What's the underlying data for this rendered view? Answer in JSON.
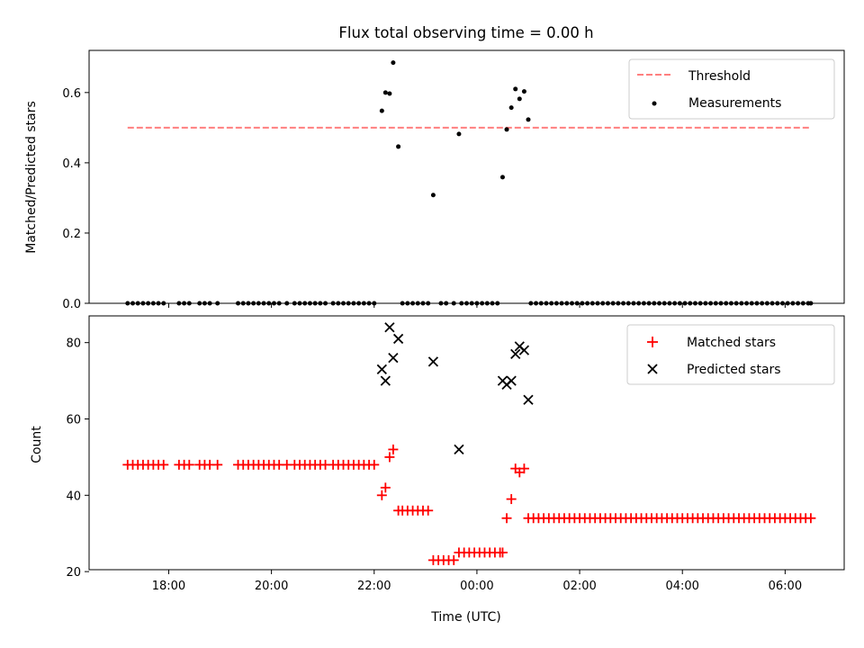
{
  "title": "Flux total observing time = 0.00 h",
  "colors": {
    "threshold": "#ff7f7f",
    "measurement": "#000000",
    "matched": "#ff0000",
    "predicted": "#000000"
  },
  "chart_data": [
    {
      "type": "scatter",
      "ylabel": "Matched/Predicted stars",
      "xlabel": "",
      "x_unit": "hours (UTC, continuing past midnight)",
      "xlim": [
        16.45,
        31.15
      ],
      "ylim": [
        0.0,
        0.72
      ],
      "yticks": [
        0.0,
        0.2,
        0.4,
        0.6
      ],
      "ytick_labels": [
        "0.0",
        "0.2",
        "0.4",
        "0.6"
      ],
      "legend": {
        "position": "top-right",
        "entries": [
          "Threshold",
          "Measurements"
        ]
      },
      "threshold": {
        "name": "Threshold",
        "value": 0.5,
        "x_range": [
          17.2,
          30.5
        ]
      },
      "series": [
        {
          "name": "Measurements",
          "points": [
            [
              17.2,
              0
            ],
            [
              17.3,
              0
            ],
            [
              17.4,
              0
            ],
            [
              17.5,
              0
            ],
            [
              17.6,
              0
            ],
            [
              17.7,
              0
            ],
            [
              17.8,
              0
            ],
            [
              17.9,
              0
            ],
            [
              18.2,
              0
            ],
            [
              18.3,
              0
            ],
            [
              18.4,
              0
            ],
            [
              18.6,
              0
            ],
            [
              18.7,
              0
            ],
            [
              18.8,
              0
            ],
            [
              18.95,
              0
            ],
            [
              19.35,
              0
            ],
            [
              19.45,
              0
            ],
            [
              19.55,
              0
            ],
            [
              19.65,
              0
            ],
            [
              19.75,
              0
            ],
            [
              19.85,
              0
            ],
            [
              19.95,
              0
            ],
            [
              20.05,
              0
            ],
            [
              20.15,
              0
            ],
            [
              20.3,
              0
            ],
            [
              20.45,
              0
            ],
            [
              20.55,
              0
            ],
            [
              20.65,
              0
            ],
            [
              20.75,
              0
            ],
            [
              20.85,
              0
            ],
            [
              20.95,
              0
            ],
            [
              21.05,
              0
            ],
            [
              21.2,
              0
            ],
            [
              21.3,
              0
            ],
            [
              21.4,
              0
            ],
            [
              21.5,
              0
            ],
            [
              21.6,
              0
            ],
            [
              21.7,
              0
            ],
            [
              21.8,
              0
            ],
            [
              21.9,
              0
            ],
            [
              22.0,
              0
            ],
            [
              22.15,
              0.548
            ],
            [
              22.22,
              0.6
            ],
            [
              22.3,
              0.597
            ],
            [
              22.37,
              0.685
            ],
            [
              22.47,
              0.446
            ],
            [
              22.55,
              0
            ],
            [
              22.65,
              0
            ],
            [
              22.75,
              0
            ],
            [
              22.85,
              0
            ],
            [
              22.95,
              0
            ],
            [
              23.05,
              0
            ],
            [
              23.15,
              0.308
            ],
            [
              23.65,
              0.482
            ],
            [
              23.3,
              0
            ],
            [
              23.4,
              0
            ],
            [
              23.55,
              0
            ],
            [
              23.7,
              0
            ],
            [
              23.8,
              0
            ],
            [
              23.9,
              0
            ],
            [
              24.0,
              0
            ],
            [
              24.1,
              0
            ],
            [
              24.2,
              0
            ],
            [
              24.3,
              0
            ],
            [
              24.4,
              0
            ],
            [
              24.5,
              0.359
            ],
            [
              24.58,
              0.495
            ],
            [
              24.67,
              0.557
            ],
            [
              24.75,
              0.61
            ],
            [
              24.83,
              0.582
            ],
            [
              24.92,
              0.603
            ],
            [
              25.0,
              0.523
            ],
            [
              25.05,
              0
            ],
            [
              25.15,
              0
            ],
            [
              25.25,
              0
            ],
            [
              25.35,
              0
            ],
            [
              25.45,
              0
            ],
            [
              25.55,
              0
            ],
            [
              25.65,
              0
            ],
            [
              25.75,
              0
            ],
            [
              25.85,
              0
            ],
            [
              25.95,
              0
            ],
            [
              26.05,
              0
            ],
            [
              26.15,
              0
            ],
            [
              26.25,
              0
            ],
            [
              26.35,
              0
            ],
            [
              26.45,
              0
            ],
            [
              26.55,
              0
            ],
            [
              26.65,
              0
            ],
            [
              26.75,
              0
            ],
            [
              26.85,
              0
            ],
            [
              26.95,
              0
            ],
            [
              27.05,
              0
            ],
            [
              27.15,
              0
            ],
            [
              27.25,
              0
            ],
            [
              27.35,
              0
            ],
            [
              27.45,
              0
            ],
            [
              27.55,
              0
            ],
            [
              27.65,
              0
            ],
            [
              27.75,
              0
            ],
            [
              27.85,
              0
            ],
            [
              27.95,
              0
            ],
            [
              28.05,
              0
            ],
            [
              28.15,
              0
            ],
            [
              28.25,
              0
            ],
            [
              28.35,
              0
            ],
            [
              28.45,
              0
            ],
            [
              28.55,
              0
            ],
            [
              28.65,
              0
            ],
            [
              28.75,
              0
            ],
            [
              28.85,
              0
            ],
            [
              28.95,
              0
            ],
            [
              29.05,
              0
            ],
            [
              29.15,
              0
            ],
            [
              29.25,
              0
            ],
            [
              29.35,
              0
            ],
            [
              29.45,
              0
            ],
            [
              29.55,
              0
            ],
            [
              29.65,
              0
            ],
            [
              29.75,
              0
            ],
            [
              29.85,
              0
            ],
            [
              29.95,
              0
            ],
            [
              30.05,
              0
            ],
            [
              30.15,
              0
            ],
            [
              30.25,
              0
            ],
            [
              30.35,
              0
            ],
            [
              30.45,
              0
            ],
            [
              30.5,
              0
            ]
          ]
        }
      ]
    },
    {
      "type": "scatter",
      "ylabel": "Count",
      "xlabel": "Time (UTC)",
      "x_unit": "hours (UTC, continuing past midnight)",
      "xlim": [
        16.45,
        31.15
      ],
      "ylim": [
        20.5,
        87
      ],
      "yticks": [
        20,
        40,
        60,
        80
      ],
      "ytick_labels": [
        "20",
        "40",
        "60",
        "80"
      ],
      "xticks": [
        18,
        20,
        22,
        24,
        26,
        28,
        30
      ],
      "xtick_labels": [
        "18:00",
        "20:00",
        "22:00",
        "00:00",
        "02:00",
        "04:00",
        "06:00"
      ],
      "legend": {
        "position": "top-right",
        "entries": [
          "Matched stars",
          "Predicted stars"
        ]
      },
      "series": [
        {
          "name": "Matched stars",
          "points": [
            [
              17.2,
              48
            ],
            [
              17.3,
              48
            ],
            [
              17.4,
              48
            ],
            [
              17.5,
              48
            ],
            [
              17.6,
              48
            ],
            [
              17.7,
              48
            ],
            [
              17.8,
              48
            ],
            [
              17.9,
              48
            ],
            [
              18.2,
              48
            ],
            [
              18.3,
              48
            ],
            [
              18.4,
              48
            ],
            [
              18.6,
              48
            ],
            [
              18.7,
              48
            ],
            [
              18.8,
              48
            ],
            [
              18.95,
              48
            ],
            [
              19.35,
              48
            ],
            [
              19.45,
              48
            ],
            [
              19.55,
              48
            ],
            [
              19.65,
              48
            ],
            [
              19.75,
              48
            ],
            [
              19.85,
              48
            ],
            [
              19.95,
              48
            ],
            [
              20.05,
              48
            ],
            [
              20.15,
              48
            ],
            [
              20.3,
              48
            ],
            [
              20.45,
              48
            ],
            [
              20.55,
              48
            ],
            [
              20.65,
              48
            ],
            [
              20.75,
              48
            ],
            [
              20.85,
              48
            ],
            [
              20.95,
              48
            ],
            [
              21.05,
              48
            ],
            [
              21.2,
              48
            ],
            [
              21.3,
              48
            ],
            [
              21.4,
              48
            ],
            [
              21.5,
              48
            ],
            [
              21.6,
              48
            ],
            [
              21.7,
              48
            ],
            [
              21.8,
              48
            ],
            [
              21.9,
              48
            ],
            [
              22.0,
              48
            ],
            [
              22.15,
              40
            ],
            [
              22.22,
              42
            ],
            [
              22.3,
              50
            ],
            [
              22.37,
              52
            ],
            [
              22.47,
              36
            ],
            [
              22.55,
              36
            ],
            [
              22.65,
              36
            ],
            [
              22.75,
              36
            ],
            [
              22.85,
              36
            ],
            [
              22.95,
              36
            ],
            [
              23.05,
              36
            ],
            [
              23.15,
              23
            ],
            [
              23.25,
              23
            ],
            [
              23.35,
              23
            ],
            [
              23.45,
              23
            ],
            [
              23.55,
              23
            ],
            [
              23.65,
              25
            ],
            [
              23.75,
              25
            ],
            [
              23.85,
              25
            ],
            [
              23.95,
              25
            ],
            [
              24.05,
              25
            ],
            [
              24.15,
              25
            ],
            [
              24.25,
              25
            ],
            [
              24.35,
              25
            ],
            [
              24.45,
              25
            ],
            [
              24.5,
              25
            ],
            [
              24.58,
              34
            ],
            [
              24.67,
              39
            ],
            [
              24.75,
              47
            ],
            [
              24.83,
              46
            ],
            [
              24.92,
              47
            ],
            [
              25.0,
              34
            ],
            [
              25.1,
              34
            ],
            [
              25.2,
              34
            ],
            [
              25.3,
              34
            ],
            [
              25.4,
              34
            ],
            [
              25.5,
              34
            ],
            [
              25.6,
              34
            ],
            [
              25.7,
              34
            ],
            [
              25.8,
              34
            ],
            [
              25.9,
              34
            ],
            [
              26.0,
              34
            ],
            [
              26.1,
              34
            ],
            [
              26.2,
              34
            ],
            [
              26.3,
              34
            ],
            [
              26.4,
              34
            ],
            [
              26.5,
              34
            ],
            [
              26.6,
              34
            ],
            [
              26.7,
              34
            ],
            [
              26.8,
              34
            ],
            [
              26.9,
              34
            ],
            [
              27.0,
              34
            ],
            [
              27.1,
              34
            ],
            [
              27.2,
              34
            ],
            [
              27.3,
              34
            ],
            [
              27.4,
              34
            ],
            [
              27.5,
              34
            ],
            [
              27.6,
              34
            ],
            [
              27.7,
              34
            ],
            [
              27.8,
              34
            ],
            [
              27.9,
              34
            ],
            [
              28.0,
              34
            ],
            [
              28.1,
              34
            ],
            [
              28.2,
              34
            ],
            [
              28.3,
              34
            ],
            [
              28.4,
              34
            ],
            [
              28.5,
              34
            ],
            [
              28.6,
              34
            ],
            [
              28.7,
              34
            ],
            [
              28.8,
              34
            ],
            [
              28.9,
              34
            ],
            [
              29.0,
              34
            ],
            [
              29.1,
              34
            ],
            [
              29.2,
              34
            ],
            [
              29.3,
              34
            ],
            [
              29.4,
              34
            ],
            [
              29.5,
              34
            ],
            [
              29.6,
              34
            ],
            [
              29.7,
              34
            ],
            [
              29.8,
              34
            ],
            [
              29.9,
              34
            ],
            [
              30.0,
              34
            ],
            [
              30.1,
              34
            ],
            [
              30.2,
              34
            ],
            [
              30.3,
              34
            ],
            [
              30.4,
              34
            ],
            [
              30.5,
              34
            ]
          ]
        },
        {
          "name": "Predicted stars",
          "points": [
            [
              22.15,
              73
            ],
            [
              22.22,
              70
            ],
            [
              22.3,
              84
            ],
            [
              22.37,
              76
            ],
            [
              22.47,
              81
            ],
            [
              23.15,
              75
            ],
            [
              23.65,
              52
            ],
            [
              24.5,
              70
            ],
            [
              24.58,
              69
            ],
            [
              24.67,
              70
            ],
            [
              24.75,
              77
            ],
            [
              24.83,
              79
            ],
            [
              24.92,
              78
            ],
            [
              25.0,
              65
            ]
          ]
        }
      ]
    }
  ]
}
